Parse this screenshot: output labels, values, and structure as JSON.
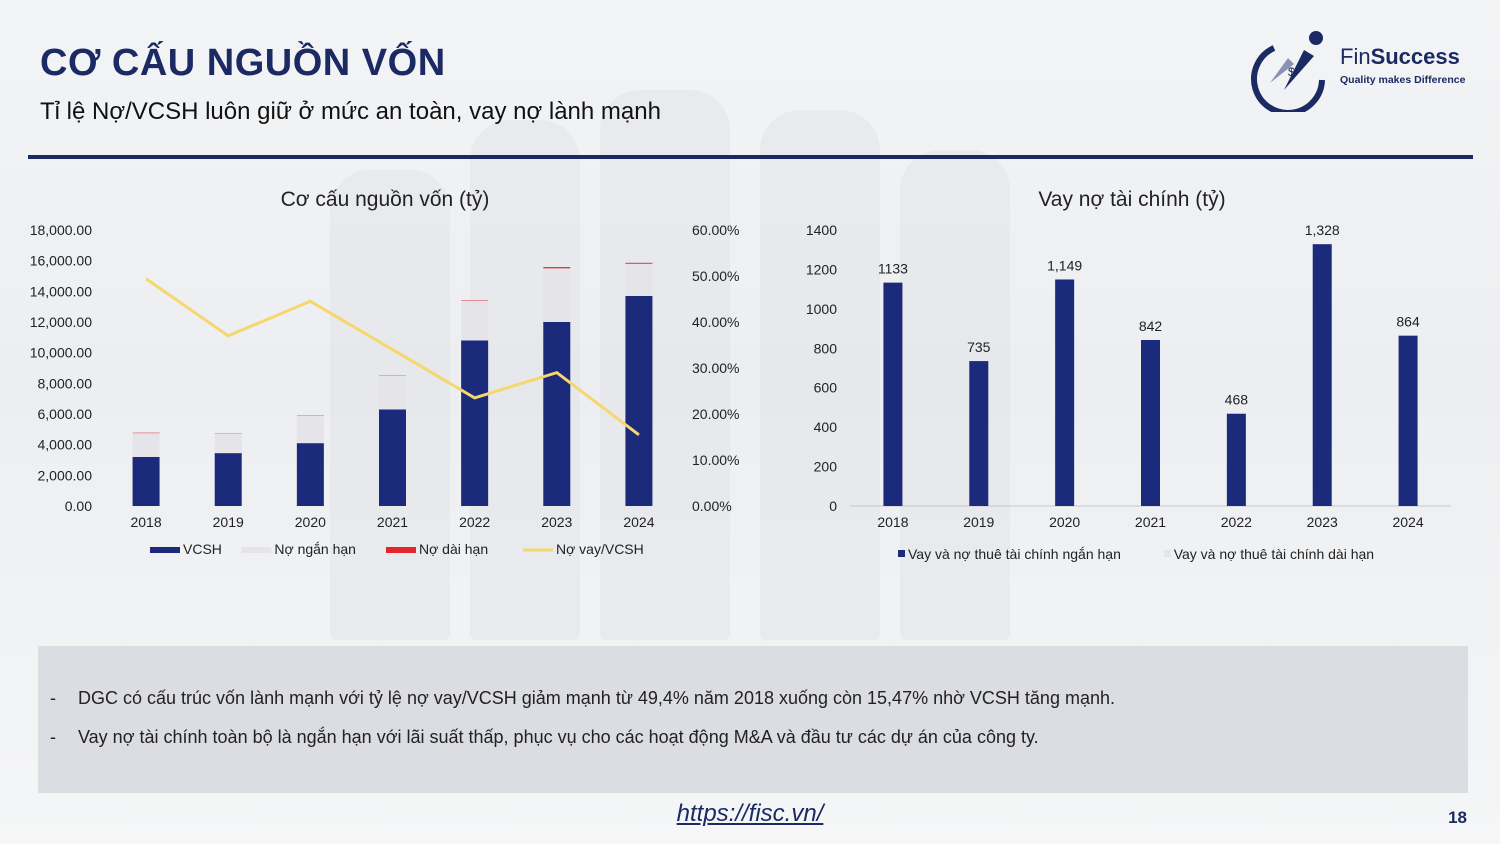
{
  "slide": {
    "title": "CƠ CẤU NGUỒN VỐN",
    "subtitle": "Tỉ lệ Nợ/VCSH luôn giữ ở mức an toàn, vay nợ lành mạnh",
    "logo_name_bold": "Fin",
    "logo_name_rest": "Success",
    "logo_tagline": "Quality makes Difference",
    "footer_link": "https://fisc.vn/",
    "page_number": "18",
    "accent_color": "#1b2a63"
  },
  "notes": [
    {
      "bullet": "-",
      "text": "DGC có cấu trúc vốn lành mạnh với tỷ lệ nợ vay/VCSH giảm mạnh từ 49,4% năm 2018 xuống còn 15,47% nhờ VCSH tăng mạnh."
    },
    {
      "bullet": "-",
      "text": "Vay nợ tài chính toàn bộ là ngắn hạn với lãi suất thấp, phục vụ cho các hoạt động M&A và đầu tư các dự án của công ty."
    }
  ],
  "chart_data": [
    {
      "type": "bar",
      "stacked": true,
      "title": "Cơ cấu nguồn vốn (tỷ)",
      "categories": [
        "2018",
        "2019",
        "2020",
        "2021",
        "2022",
        "2023",
        "2024"
      ],
      "series": [
        {
          "name": "VCSH",
          "color": "#1b2a7a",
          "axis": "left",
          "values": [
            3200,
            3450,
            4100,
            6300,
            10800,
            12000,
            13700
          ]
        },
        {
          "name": "Nợ ngắn hạn",
          "color": "#e4e4e9",
          "axis": "left",
          "values": [
            1550,
            1250,
            1800,
            2200,
            2600,
            3500,
            2100
          ]
        },
        {
          "name": "Nợ dài hạn",
          "color": "#e3262c",
          "axis": "left",
          "values": [
            30,
            20,
            20,
            20,
            30,
            80,
            60
          ]
        },
        {
          "name": "Nợ vay/VCSH",
          "type": "line",
          "color": "#f5d76e",
          "axis": "right",
          "values": [
            49.4,
            37.0,
            44.5,
            34.0,
            23.5,
            29.0,
            15.47
          ]
        }
      ],
      "y_left": {
        "min": 0,
        "max": 18000,
        "ticks": [
          "0.00",
          "2,000.00",
          "4,000.00",
          "6,000.00",
          "8,000.00",
          "10,000.00",
          "12,000.00",
          "14,000.00",
          "16,000.00",
          "18,000.00"
        ]
      },
      "y_right": {
        "min": 0,
        "max": 60,
        "ticks": [
          "0.00%",
          "10.00%",
          "20.00%",
          "30.00%",
          "40.00%",
          "50.00%",
          "60.00%"
        ]
      },
      "grid": false,
      "legend": "bottom"
    },
    {
      "type": "bar",
      "stacked": true,
      "title": "Vay nợ tài chính (tỷ)",
      "categories": [
        "2018",
        "2019",
        "2020",
        "2021",
        "2022",
        "2023",
        "2024"
      ],
      "series": [
        {
          "name": "Vay và nợ thuê tài chính ngắn hạn",
          "color": "#1b2a7a",
          "values": [
            1133,
            735,
            1149,
            842,
            468,
            1328,
            864
          ]
        },
        {
          "name": "Vay và nợ thuê tài chính dài hạn",
          "color": "#e4e4e9",
          "values": [
            0,
            0,
            0,
            0,
            0,
            0,
            0
          ]
        }
      ],
      "data_labels": [
        "1133",
        "735",
        "1,149",
        "842",
        "468",
        "1,328",
        "864"
      ],
      "y": {
        "min": 0,
        "max": 1400,
        "ticks": [
          "0",
          "200",
          "400",
          "600",
          "800",
          "1000",
          "1200",
          "1400"
        ]
      },
      "grid": false,
      "legend": "bottom"
    }
  ]
}
